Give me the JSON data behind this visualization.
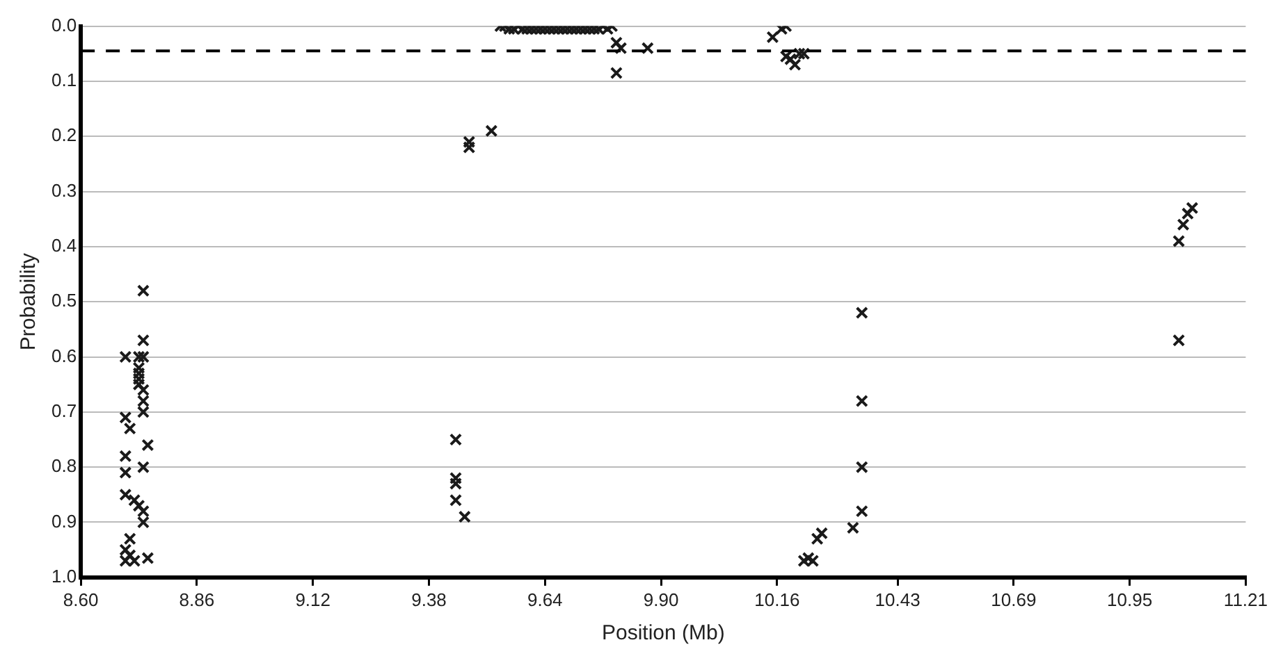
{
  "chart_data": {
    "type": "scatter",
    "xlabel": "Position (Mb)",
    "ylabel": "Probability",
    "xlim": [
      8.6,
      11.21
    ],
    "xticks": [
      {
        "value": 8.6,
        "label": "8.60"
      },
      8.86,
      9.12,
      9.38,
      9.64,
      {
        "value": 9.9,
        "label": "9.90"
      },
      10.16,
      10.43,
      10.69,
      10.95,
      11.21
    ],
    "ylim": [
      1.0,
      0.0
    ],
    "yticks": [
      {
        "value": 0,
        "label": "0.0"
      },
      0.1,
      0.2,
      0.3,
      0.4,
      0.5,
      0.6,
      0.7,
      0.8,
      0.9,
      {
        "value": 1,
        "label": "1.0"
      }
    ],
    "grid": "y",
    "legend": false,
    "marker": "cross",
    "ref_lines": [
      {
        "axis": "y",
        "value": 0.045,
        "color": "#000000",
        "line_style": "dashed"
      }
    ],
    "series": [
      {
        "color": "#1a1a1a",
        "x": [
          8.74,
          8.74,
          8.7,
          8.73,
          8.74,
          8.73,
          8.73,
          8.73,
          8.73,
          8.74,
          8.74,
          8.74,
          8.7,
          8.71,
          8.75,
          8.7,
          8.74,
          8.7,
          8.7,
          8.72,
          8.73,
          8.74,
          8.74,
          8.71,
          8.7,
          8.71,
          8.7,
          8.72,
          8.75,
          9.44,
          9.44,
          9.44,
          9.44,
          9.46,
          9.47,
          9.47,
          9.52,
          9.54,
          9.55,
          9.56,
          9.57,
          9.58,
          9.59,
          9.6,
          9.61,
          9.62,
          9.63,
          9.64,
          9.65,
          9.66,
          9.67,
          9.68,
          9.69,
          9.7,
          9.71,
          9.72,
          9.73,
          9.74,
          9.75,
          9.76,
          9.77,
          9.78,
          9.79,
          9.8,
          9.81,
          9.8,
          9.87,
          10.15,
          10.17,
          10.18,
          10.19,
          10.2,
          10.21,
          10.22,
          10.18,
          10.22,
          10.24,
          10.23,
          10.25,
          10.26,
          10.33,
          10.35,
          10.35,
          10.35,
          10.35,
          11.06,
          11.06,
          11.07,
          11.08,
          11.09
        ],
        "values": [
          0.48,
          0.57,
          0.6,
          0.6,
          0.6,
          0.62,
          0.63,
          0.64,
          0.65,
          0.66,
          0.68,
          0.7,
          0.71,
          0.73,
          0.76,
          0.78,
          0.8,
          0.81,
          0.85,
          0.86,
          0.87,
          0.88,
          0.9,
          0.93,
          0.95,
          0.96,
          0.97,
          0.97,
          0.965,
          0.75,
          0.82,
          0.83,
          0.86,
          0.89,
          0.21,
          0.22,
          0.19,
          0.0,
          0.0,
          0.005,
          0.005,
          0.0,
          0.005,
          0.005,
          0.005,
          0.005,
          0.005,
          0.005,
          0.005,
          0.005,
          0.005,
          0.005,
          0.005,
          0.005,
          0.005,
          0.005,
          0.005,
          0.005,
          0.005,
          0.005,
          0.0,
          0.005,
          0.0,
          0.03,
          0.04,
          0.085,
          0.04,
          0.02,
          0.005,
          0.0,
          0.06,
          0.07,
          0.05,
          0.05,
          0.055,
          0.97,
          0.97,
          0.965,
          0.93,
          0.92,
          0.91,
          0.88,
          0.8,
          0.68,
          0.52,
          0.57,
          0.39,
          0.36,
          0.34,
          0.33
        ]
      }
    ]
  }
}
